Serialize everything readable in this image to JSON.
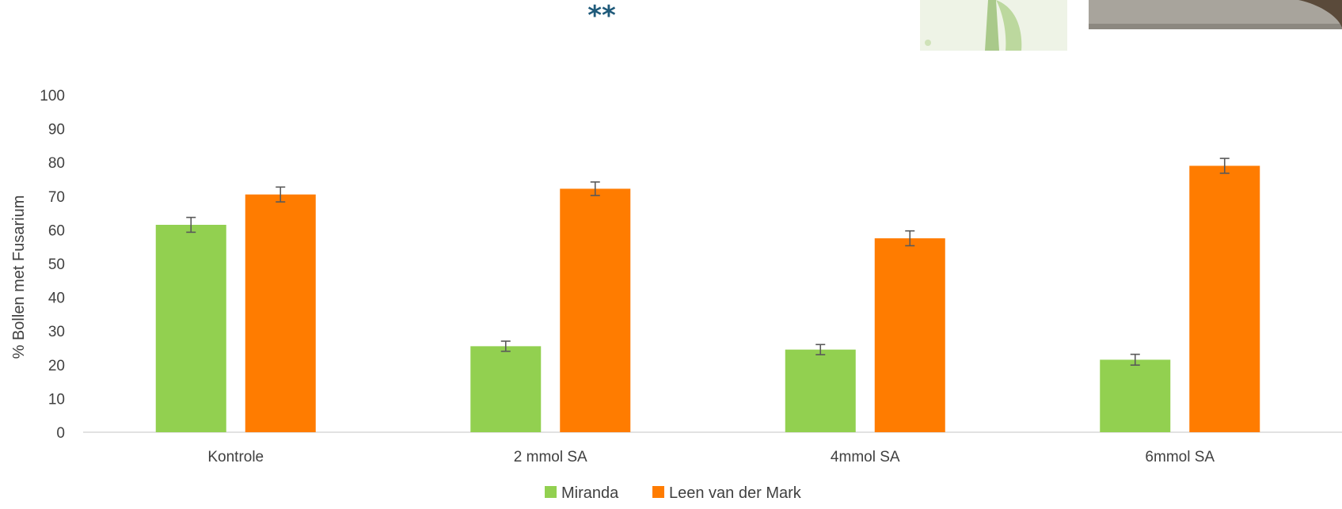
{
  "annotation": "**",
  "colors": {
    "Miranda": "#92d050",
    "Leen van der Mark": "#ff7c00",
    "axis": "#d9d9d9",
    "text": "#404040",
    "error_bar": "#595959",
    "annotation": "#1f5a7a"
  },
  "chart_data": {
    "type": "bar",
    "title": "",
    "xlabel": "",
    "ylabel": "% Bollen met Fusarium",
    "categories": [
      "Kontrole",
      "2 mmol SA",
      "4mmol SA",
      "6mmol SA"
    ],
    "series": [
      {
        "name": "Miranda",
        "values": [
          61.5,
          25.5,
          24.5,
          21.5
        ],
        "errors": [
          2.2,
          1.5,
          1.5,
          1.6
        ]
      },
      {
        "name": "Leen van der Mark",
        "values": [
          70.5,
          72.2,
          57.5,
          79
        ],
        "errors": [
          2.2,
          2.0,
          2.2,
          2.2
        ]
      }
    ],
    "ylim": [
      0,
      100
    ],
    "yticks": [
      0,
      10,
      20,
      30,
      40,
      50,
      60,
      70,
      80,
      90,
      100
    ],
    "grid": false,
    "legend": "bottom-center"
  }
}
